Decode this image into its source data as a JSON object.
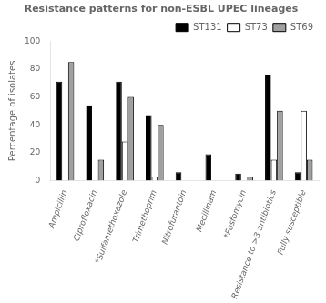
{
  "chart_data": {
    "type": "bar",
    "title": "Resistance patterns for non-ESBL UPEC lineages",
    "y_label": "Percentage of isolates",
    "categories": [
      "Ampicillin",
      "Ciprofloxacin",
      "*Sulfamethoxazole",
      "Trimethoprim",
      "Nitrofurantoin",
      "Mecillinam",
      "*Fosfomycin",
      "Resistance to >3 antibiotics",
      "Fully susceptible"
    ],
    "series": [
      {
        "name": "ST131",
        "color": "#000000",
        "values": [
          71,
          54,
          71,
          47,
          6,
          19,
          5,
          76,
          6
        ]
      },
      {
        "name": "ST73",
        "color": "#ffffff",
        "values": [
          0,
          0,
          28,
          3,
          0,
          0,
          0,
          15,
          50
        ]
      },
      {
        "name": "ST69",
        "color": "#a0a0a0",
        "values": [
          85,
          15,
          60,
          40,
          0,
          0,
          3,
          50,
          15
        ]
      }
    ],
    "ylim": [
      0,
      100
    ],
    "yticks": [
      0,
      20,
      40,
      60,
      80,
      100
    ],
    "grid": false,
    "legend": "upper right"
  }
}
